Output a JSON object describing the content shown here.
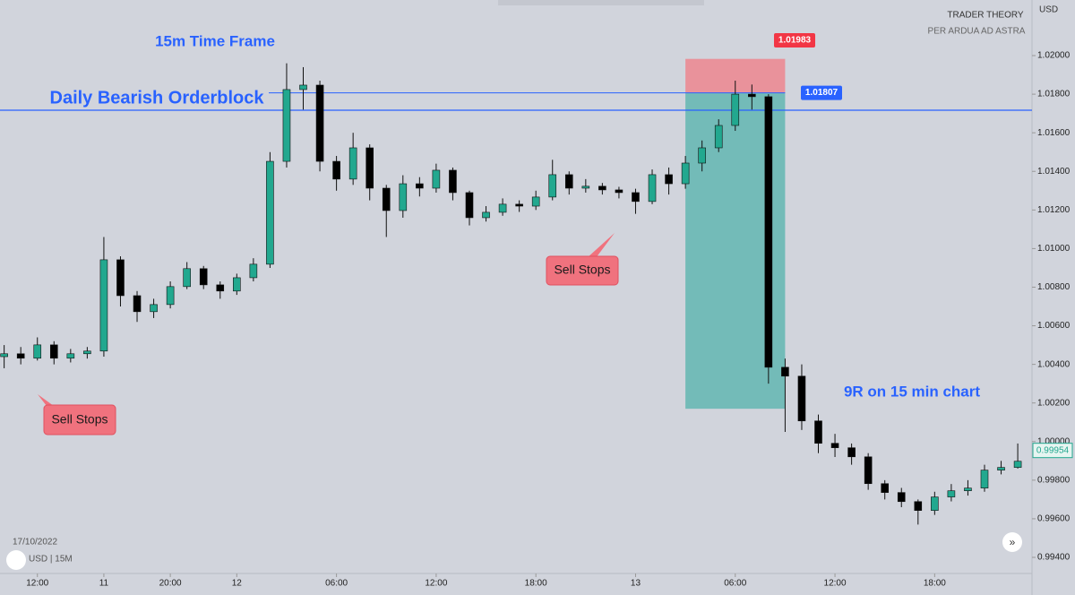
{
  "chart_data": {
    "type": "candlestick",
    "x": [
      1,
      5,
      9,
      13,
      17,
      21,
      25,
      29,
      33,
      37,
      41,
      45,
      49,
      53,
      57,
      61,
      65,
      69,
      73,
      77,
      81,
      85,
      89,
      93,
      97,
      101,
      105,
      109,
      113,
      117,
      121,
      125,
      129,
      133,
      137,
      141,
      145,
      149,
      153,
      157,
      161,
      165,
      169,
      173,
      177,
      181,
      185,
      189,
      193,
      197,
      201,
      205,
      209,
      213,
      217,
      221,
      225,
      229,
      233,
      237,
      241,
      245
    ],
    "open": [
      1.0044,
      1.00455,
      1.00432,
      1.00501,
      1.00432,
      1.00455,
      1.00469,
      1.00942,
      1.00756,
      1.00673,
      1.0071,
      1.00803,
      1.00896,
      1.00812,
      1.0078,
      1.00849,
      1.00919,
      1.01452,
      1.01824,
      1.01847,
      1.01452,
      1.0136,
      1.01522,
      1.01313,
      1.01197,
      1.01336,
      1.01313,
      1.01406,
      1.0129,
      1.0116,
      1.01188,
      1.0123,
      1.0122,
      1.01267,
      1.01383,
      1.01313,
      1.01323,
      1.01304,
      1.0129,
      1.01244,
      1.01383,
      1.01336,
      1.01443,
      1.01522,
      1.01638,
      1.018,
      1.01787,
      1.00385,
      1.00339,
      1.00107,
      0.99991,
      0.99968,
      0.99921,
      0.99782,
      0.99736,
      0.99689,
      0.99643,
      0.99713,
      0.99745,
      0.99759,
      0.99852,
      0.99866
    ],
    "high": [
      1.005,
      1.0049,
      1.0054,
      1.0052,
      1.0048,
      1.0049,
      1.0106,
      1.0096,
      1.0078,
      1.0074,
      1.0083,
      1.0093,
      1.0091,
      1.0083,
      1.0087,
      1.0095,
      1.015,
      1.0196,
      1.0194,
      1.0187,
      1.0148,
      1.016,
      1.0154,
      1.0133,
      1.0138,
      1.0137,
      1.0144,
      1.0142,
      1.013,
      1.0122,
      1.0126,
      1.0125,
      1.013,
      1.0146,
      1.014,
      1.0136,
      1.0134,
      1.0132,
      1.0131,
      1.0141,
      1.0142,
      1.0148,
      1.0156,
      1.0167,
      1.0187,
      1.0185,
      1.018,
      1.0043,
      1.004,
      1.0014,
      1.0004,
      0.9999,
      0.9994,
      0.998,
      0.9976,
      0.997,
      0.9974,
      0.9978,
      0.998,
      0.9988,
      0.999,
      0.9999
    ],
    "low": [
      1.0038,
      1.004,
      1.0042,
      1.004,
      1.0041,
      1.0043,
      1.0044,
      1.007,
      1.0062,
      1.0064,
      1.0069,
      1.0079,
      1.0079,
      1.0074,
      1.0076,
      1.0083,
      1.009,
      1.0142,
      1.0172,
      1.014,
      1.013,
      1.0133,
      1.0125,
      1.0106,
      1.0116,
      1.0127,
      1.0129,
      1.0125,
      1.0112,
      1.0114,
      1.0117,
      1.0119,
      1.012,
      1.0125,
      1.0128,
      1.0129,
      1.0128,
      1.0126,
      1.0118,
      1.0123,
      1.0128,
      1.0131,
      1.014,
      1.015,
      1.0161,
      1.0172,
      1.003,
      1.0005,
      1.0006,
      0.9994,
      0.9992,
      0.9988,
      0.9975,
      0.997,
      0.9966,
      0.9957,
      0.9962,
      0.9969,
      0.9972,
      0.9974,
      0.9983,
      0.9986
    ],
    "close": [
      1.00455,
      1.00432,
      1.00501,
      1.00432,
      1.00455,
      1.00469,
      1.00942,
      1.00756,
      1.00673,
      1.0071,
      1.00803,
      1.00896,
      1.00812,
      1.0078,
      1.00849,
      1.00919,
      1.01452,
      1.01824,
      1.01847,
      1.01452,
      1.0136,
      1.01522,
      1.01313,
      1.01197,
      1.01336,
      1.01313,
      1.01406,
      1.0129,
      1.0116,
      1.01188,
      1.0123,
      1.0122,
      1.01267,
      1.01383,
      1.01313,
      1.01323,
      1.01304,
      1.0129,
      1.01244,
      1.01383,
      1.01336,
      1.01443,
      1.01522,
      1.01638,
      1.018,
      1.01787,
      1.00385,
      1.00339,
      1.00107,
      0.99991,
      0.99968,
      0.99921,
      0.99782,
      0.99736,
      0.99689,
      0.99643,
      0.99713,
      0.99745,
      0.99759,
      0.99852,
      0.99866,
      0.99898
    ],
    "up_color": "#22a88f",
    "down_color": "#000000",
    "xlim": [
      0,
      248
    ],
    "xticks": [
      {
        "value": 9,
        "label": "12:00"
      },
      {
        "value": 25,
        "label": "11"
      },
      {
        "value": 41,
        "label": "20:00"
      },
      {
        "value": 57,
        "label": "12"
      },
      {
        "value": 81,
        "label": "06:00"
      },
      {
        "value": 105,
        "label": "12:00"
      },
      {
        "value": 129,
        "label": "18:00"
      },
      {
        "value": 153,
        "label": "13"
      },
      {
        "value": 177,
        "label": "06:00"
      },
      {
        "value": 201,
        "label": "12:00"
      },
      {
        "value": 225,
        "label": "18:00"
      }
    ],
    "ylim": [
      0.9927,
      1.02288
    ],
    "yticks": [
      {
        "value": 1.02,
        "label": "1.02000"
      },
      {
        "value": 1.018,
        "label": "1.01800"
      },
      {
        "value": 1.016,
        "label": "1.01600"
      },
      {
        "value": 1.014,
        "label": "1.01400"
      },
      {
        "value": 1.012,
        "label": "1.01200"
      },
      {
        "value": 1.01,
        "label": "1.01000"
      },
      {
        "value": 1.008,
        "label": "1.00800"
      },
      {
        "value": 1.006,
        "label": "1.00600"
      },
      {
        "value": 1.004,
        "label": "1.00400"
      },
      {
        "value": 1.002,
        "label": "1.00200"
      },
      {
        "value": 1.0,
        "label": "1.00000"
      },
      {
        "value": 0.998,
        "label": "0.99800"
      },
      {
        "value": 0.996,
        "label": "0.99600"
      },
      {
        "value": 0.994,
        "label": "0.99400"
      }
    ],
    "orderblock_level": 1.01717,
    "position": {
      "stop": 1.01983,
      "entry": 1.01807,
      "target": 1.0017,
      "x_start": 165,
      "x_end": 189
    },
    "last_price": 0.99954,
    "annotations": {
      "timeframe": "15m Time Frame",
      "orderblock": "Daily Bearish Orderblock",
      "sell_stops_left": "Sell Stops",
      "sell_stops_mid": "Sell Stops",
      "result": "9R on 15 min chart"
    },
    "header": {
      "brand": "TRADER THEORY",
      "motto": "PER ARDUA AD ASTRA",
      "currency": "USD"
    },
    "footer": {
      "date": "17/10/2022",
      "symbol": "USD | 15M"
    }
  }
}
